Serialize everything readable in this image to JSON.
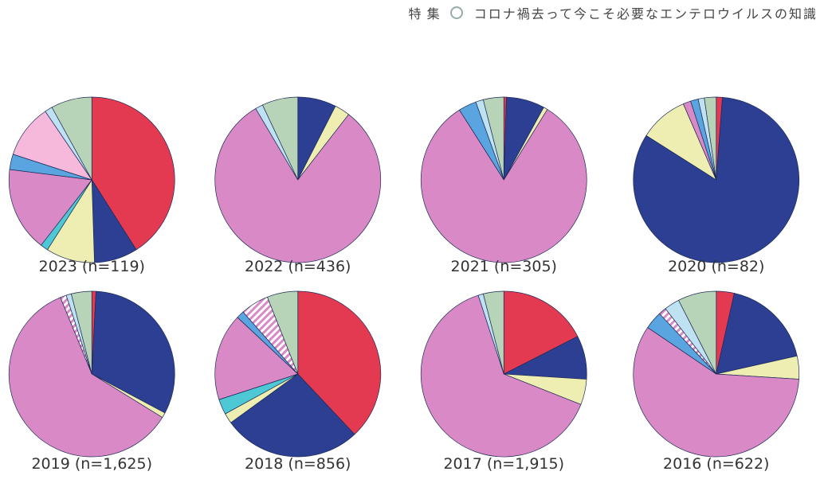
{
  "header": {
    "section": "特 集",
    "title": "コロナ禍去って今こそ必要なエンテロウイルスの知識",
    "icon": "hexagon-icon"
  },
  "colors": {
    "red": "#e33a52",
    "navy": "#2c3f93",
    "yellow": "#eeeeb2",
    "pink": "#d98ac6",
    "lightpink": "#f6b9dc",
    "blue": "#5aa4e0",
    "lightblue": "#bfe2f2",
    "cyan": "#4ec8d4",
    "sage": "#b7d3b8",
    "hatched": "#e9c6e6"
  },
  "chart_data": [
    {
      "type": "pie",
      "label": "2023 (n=119)",
      "slices": [
        {
          "color": "red",
          "value": 0.41
        },
        {
          "color": "navy",
          "value": 0.085
        },
        {
          "color": "yellow",
          "value": 0.095
        },
        {
          "color": "cyan",
          "value": 0.015
        },
        {
          "color": "pink",
          "value": 0.165
        },
        {
          "color": "blue",
          "value": 0.03
        },
        {
          "color": "lightpink",
          "value": 0.105
        },
        {
          "color": "lightblue",
          "value": 0.015
        },
        {
          "color": "sage",
          "value": 0.08
        }
      ]
    },
    {
      "type": "pie",
      "label": "2022 (n=436)",
      "slices": [
        {
          "color": "navy",
          "value": 0.075
        },
        {
          "color": "yellow",
          "value": 0.03
        },
        {
          "color": "pink",
          "value": 0.81
        },
        {
          "color": "lightblue",
          "value": 0.015
        },
        {
          "color": "sage",
          "value": 0.07
        }
      ]
    },
    {
      "type": "pie",
      "label": "2021 (n=305)",
      "slices": [
        {
          "color": "red",
          "value": 0.005
        },
        {
          "color": "navy",
          "value": 0.075
        },
        {
          "color": "yellow",
          "value": 0.008
        },
        {
          "color": "pink",
          "value": 0.822
        },
        {
          "color": "blue",
          "value": 0.035
        },
        {
          "color": "lightblue",
          "value": 0.015
        },
        {
          "color": "sage",
          "value": 0.04
        }
      ]
    },
    {
      "type": "pie",
      "label": "2020 (n=82)",
      "slices": [
        {
          "color": "red",
          "value": 0.012
        },
        {
          "color": "navy",
          "value": 0.828
        },
        {
          "color": "yellow",
          "value": 0.095
        },
        {
          "color": "pink",
          "value": 0.015
        },
        {
          "color": "blue",
          "value": 0.015
        },
        {
          "color": "lightblue",
          "value": 0.012
        },
        {
          "color": "sage",
          "value": 0.023
        }
      ]
    },
    {
      "type": "pie",
      "label": "2019 (n=1,625)",
      "slices": [
        {
          "color": "red",
          "value": 0.008
        },
        {
          "color": "navy",
          "value": 0.32
        },
        {
          "color": "yellow",
          "value": 0.01
        },
        {
          "color": "pink",
          "value": 0.6
        },
        {
          "color": "hatched",
          "value": 0.012
        },
        {
          "color": "lightblue",
          "value": 0.01
        },
        {
          "color": "sage",
          "value": 0.04
        }
      ]
    },
    {
      "type": "pie",
      "label": "2018 (n=856)",
      "slices": [
        {
          "color": "red",
          "value": 0.38
        },
        {
          "color": "navy",
          "value": 0.27
        },
        {
          "color": "yellow",
          "value": 0.02
        },
        {
          "color": "cyan",
          "value": 0.03
        },
        {
          "color": "pink",
          "value": 0.17
        },
        {
          "color": "blue",
          "value": 0.015
        },
        {
          "color": "hatched",
          "value": 0.055
        },
        {
          "color": "sage",
          "value": 0.06
        }
      ]
    },
    {
      "type": "pie",
      "label": "2017 (n=1,915)",
      "slices": [
        {
          "color": "red",
          "value": 0.175
        },
        {
          "color": "navy",
          "value": 0.085
        },
        {
          "color": "yellow",
          "value": 0.05
        },
        {
          "color": "pink",
          "value": 0.64
        },
        {
          "color": "lightblue",
          "value": 0.01
        },
        {
          "color": "sage",
          "value": 0.04
        }
      ]
    },
    {
      "type": "pie",
      "label": "2016 (n=622)",
      "slices": [
        {
          "color": "red",
          "value": 0.035
        },
        {
          "color": "navy",
          "value": 0.18
        },
        {
          "color": "yellow",
          "value": 0.045
        },
        {
          "color": "pink",
          "value": 0.585
        },
        {
          "color": "blue",
          "value": 0.035
        },
        {
          "color": "hatched",
          "value": 0.015
        },
        {
          "color": "lightblue",
          "value": 0.03
        },
        {
          "color": "sage",
          "value": 0.075
        }
      ]
    }
  ]
}
